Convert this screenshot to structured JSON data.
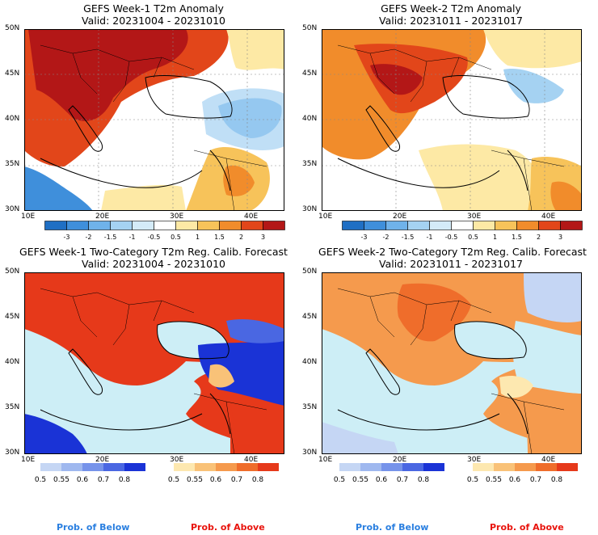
{
  "panels": [
    {
      "title": "GEFS Week-1 T2m Anomaly",
      "valid": "Valid: 20231004 - 20231010",
      "lat_labels": [
        "50N",
        "45N",
        "40N",
        "35N",
        "30N"
      ],
      "lon_labels": [
        "10E",
        "20E",
        "30E",
        "40E"
      ]
    },
    {
      "title": "GEFS Week-2 T2m Anomaly",
      "valid": "Valid: 20231011 - 20231017",
      "lat_labels": [
        "50N",
        "45N",
        "40N",
        "35N",
        "30N"
      ],
      "lon_labels": [
        "10E",
        "20E",
        "30E",
        "40E"
      ]
    },
    {
      "title": "GEFS Week-1 Two-Category T2m Reg. Calib. Forecast",
      "valid": "Valid: 20231004 - 20231010",
      "lat_labels": [
        "50N",
        "45N",
        "40N",
        "35N",
        "30N"
      ],
      "lon_labels": [
        "10E",
        "20E",
        "30E",
        "40E"
      ]
    },
    {
      "title": "GEFS Week-2 Two-Category T2m Reg. Calib. Forecast",
      "valid": "Valid: 20231011 - 20231017",
      "lat_labels": [
        "50N",
        "45N",
        "40N",
        "35N",
        "30N"
      ],
      "lon_labels": [
        "10E",
        "20E",
        "30E",
        "40E"
      ]
    }
  ],
  "anomaly_colorbar": {
    "labels": [
      "-3",
      "-2",
      "-1.5",
      "-1",
      "-0.5",
      "0.5",
      "1",
      "1.5",
      "2",
      "3"
    ],
    "colors": [
      "#1f6fc4",
      "#3f8fdb",
      "#6fb2ea",
      "#a5d2f2",
      "#d4ebf8",
      "#ffffff",
      "#fde9a5",
      "#f7c35a",
      "#f18c2b",
      "#e2461a",
      "#b31717"
    ]
  },
  "below_colorbar": {
    "labels": [
      "0.5",
      "0.55",
      "0.6",
      "0.7",
      "0.8"
    ],
    "colors": [
      "#c5d6f4",
      "#9fb8ef",
      "#7693ea",
      "#4a67e2",
      "#1a33d6"
    ],
    "caption": "Prob. of Below",
    "caption_color": "#2a7fe0"
  },
  "above_colorbar": {
    "labels": [
      "0.5",
      "0.55",
      "0.6",
      "0.7",
      "0.8"
    ],
    "colors": [
      "#fde8b0",
      "#f9c278",
      "#f59a4d",
      "#ef6d2b",
      "#e6391a"
    ],
    "caption": "Prob. of Above",
    "caption_color": "#e8130c"
  },
  "colors": {
    "sea_neutral": "#cdeef6",
    "land_white": "#ffffff",
    "border": "#000000",
    "grid": "#888888"
  }
}
